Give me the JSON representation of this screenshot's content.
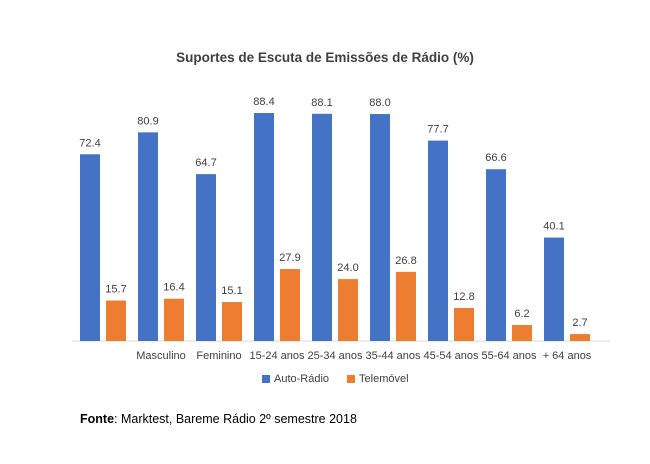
{
  "chart_data": {
    "type": "bar",
    "title": "Suportes de Escuta de Emissões de Rádio (%)",
    "categories": [
      "",
      "Masculino",
      "Feminino",
      "15-24 anos",
      "25-34 anos",
      "35-44 anos",
      "45-54 anos",
      "55-64 anos",
      "+ 64  anos"
    ],
    "series": [
      {
        "name": "Auto-Rádio",
        "color": "#4472C4",
        "values": [
          72.4,
          80.9,
          64.7,
          88.4,
          88.1,
          88.0,
          77.7,
          66.6,
          40.1
        ]
      },
      {
        "name": "Telemóvel",
        "color": "#ED7D31",
        "values": [
          15.7,
          16.4,
          15.1,
          27.9,
          24.0,
          26.8,
          12.8,
          6.2,
          2.7
        ]
      }
    ],
    "ylim": [
      0,
      100
    ],
    "grid": false,
    "legend_position": "bottom"
  },
  "source": {
    "label": "Fonte",
    "text": ": Marktest, Bareme Rádio 2º semestre 2018"
  }
}
